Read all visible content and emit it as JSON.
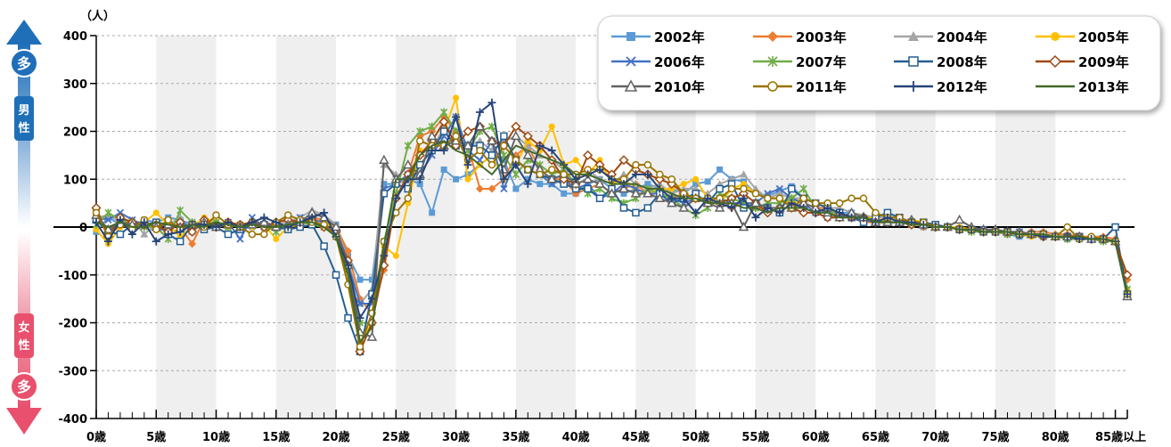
{
  "chart_data": {
    "type": "line",
    "unit_label": "（人）",
    "y_ticks": [
      400,
      300,
      200,
      100,
      0,
      -100,
      -200,
      -300,
      -400
    ],
    "ylim": [
      -400,
      400
    ],
    "x_ticks": [
      {
        "index": 0,
        "label": "0歳"
      },
      {
        "index": 5,
        "label": "5歳"
      },
      {
        "index": 10,
        "label": "10歳"
      },
      {
        "index": 15,
        "label": "15歳"
      },
      {
        "index": 20,
        "label": "20歳"
      },
      {
        "index": 25,
        "label": "25歳"
      },
      {
        "index": 30,
        "label": "30歳"
      },
      {
        "index": 35,
        "label": "35歳"
      },
      {
        "index": 40,
        "label": "40歳"
      },
      {
        "index": 45,
        "label": "45歳"
      },
      {
        "index": 50,
        "label": "50歳"
      },
      {
        "index": 55,
        "label": "55歳"
      },
      {
        "index": 60,
        "label": "60歳"
      },
      {
        "index": 65,
        "label": "65歳"
      },
      {
        "index": 70,
        "label": "70歳"
      },
      {
        "index": 75,
        "label": "75歳"
      },
      {
        "index": 80,
        "label": "80歳"
      },
      {
        "index": 85,
        "label": "85歳以上"
      }
    ],
    "shaded_bands": [
      [
        5,
        10
      ],
      [
        15,
        20
      ],
      [
        25,
        30
      ],
      [
        35,
        40
      ],
      [
        45,
        50
      ],
      [
        55,
        60
      ],
      [
        65,
        70
      ],
      [
        75,
        80
      ]
    ],
    "grid": "horizontal-dashed",
    "legend_position": "top-right",
    "side_labels": {
      "male_badge": "多",
      "male": [
        "男",
        "性"
      ],
      "female": [
        "女",
        "性"
      ],
      "female_badge": "多"
    },
    "series": [
      {
        "name": "2002年",
        "color": "#5b9bd5",
        "marker": "square",
        "values": [
          -10,
          20,
          5,
          0,
          15,
          10,
          20,
          15,
          5,
          10,
          0,
          5,
          5,
          0,
          5,
          0,
          5,
          10,
          20,
          15,
          5,
          -60,
          -110,
          -110,
          90,
          90,
          100,
          90,
          30,
          120,
          100,
          110,
          130,
          150,
          140,
          80,
          100,
          90,
          90,
          70,
          70,
          90,
          100,
          80,
          70,
          80,
          90,
          80,
          80,
          70,
          90,
          95,
          120,
          100,
          95,
          70,
          65,
          75,
          85,
          60,
          50,
          40,
          30,
          30,
          20,
          10,
          20,
          15,
          10,
          0,
          5,
          0,
          -5,
          -5,
          -10,
          -10,
          -15,
          -20,
          -15,
          -20,
          -20,
          -25,
          -20,
          -25,
          -25,
          -30,
          -140
        ]
      },
      {
        "name": "2003年",
        "color": "#ed7d31",
        "marker": "diamond",
        "values": [
          35,
          -20,
          10,
          10,
          5,
          0,
          10,
          0,
          -35,
          15,
          10,
          5,
          0,
          5,
          0,
          10,
          15,
          5,
          20,
          15,
          0,
          -50,
          -150,
          -180,
          -90,
          60,
          110,
          190,
          200,
          230,
          200,
          170,
          80,
          80,
          100,
          150,
          170,
          120,
          100,
          100,
          70,
          80,
          90,
          70,
          80,
          90,
          70,
          70,
          60,
          70,
          60,
          50,
          50,
          40,
          50,
          40,
          40,
          40,
          60,
          50,
          40,
          40,
          20,
          20,
          10,
          10,
          20,
          20,
          10,
          0,
          5,
          0,
          -5,
          -5,
          -10,
          -10,
          -10,
          -15,
          -10,
          -10,
          -15,
          -15,
          -20,
          -20,
          -20,
          -25,
          -110
        ]
      },
      {
        "name": "2004年",
        "color": "#a5a5a5",
        "marker": "triangle",
        "values": [
          20,
          25,
          10,
          15,
          -15,
          5,
          5,
          20,
          -10,
          10,
          5,
          10,
          5,
          5,
          10,
          5,
          10,
          20,
          35,
          25,
          5,
          -70,
          -160,
          -130,
          130,
          110,
          80,
          130,
          160,
          210,
          190,
          170,
          180,
          160,
          180,
          190,
          170,
          150,
          140,
          120,
          110,
          120,
          100,
          90,
          110,
          90,
          80,
          90,
          70,
          80,
          80,
          70,
          90,
          100,
          110,
          80,
          60,
          70,
          60,
          60,
          50,
          40,
          40,
          30,
          25,
          20,
          20,
          15,
          10,
          10,
          0,
          0,
          -5,
          -5,
          -10,
          -10,
          -10,
          -15,
          -15,
          -20,
          -20,
          -20,
          -25,
          -25,
          -25,
          -30,
          -140
        ]
      },
      {
        "name": "2005年",
        "color": "#ffc000",
        "marker": "circle",
        "values": [
          -5,
          -35,
          0,
          10,
          10,
          30,
          5,
          -20,
          0,
          20,
          10,
          0,
          5,
          0,
          5,
          -25,
          0,
          5,
          15,
          10,
          -5,
          -120,
          -240,
          -200,
          -40,
          -60,
          50,
          160,
          160,
          200,
          270,
          100,
          130,
          150,
          100,
          130,
          180,
          160,
          210,
          130,
          140,
          110,
          140,
          90,
          100,
          80,
          70,
          80,
          80,
          90,
          100,
          60,
          50,
          80,
          90,
          70,
          60,
          60,
          50,
          60,
          50,
          40,
          30,
          20,
          20,
          20,
          10,
          10,
          15,
          10,
          0,
          0,
          0,
          -5,
          -10,
          -10,
          -15,
          -15,
          -20,
          -20,
          -20,
          -20,
          -25,
          -20,
          -25,
          -30,
          -130
        ]
      },
      {
        "name": "2006年",
        "color": "#4472c4",
        "marker": "x",
        "values": [
          20,
          15,
          30,
          15,
          5,
          0,
          -10,
          10,
          0,
          5,
          5,
          10,
          -25,
          20,
          0,
          5,
          0,
          20,
          15,
          10,
          -20,
          -80,
          -160,
          -160,
          80,
          90,
          110,
          110,
          150,
          190,
          230,
          160,
          140,
          180,
          80,
          140,
          120,
          110,
          90,
          100,
          80,
          90,
          60,
          70,
          90,
          80,
          70,
          70,
          60,
          50,
          60,
          60,
          60,
          50,
          50,
          50,
          70,
          80,
          60,
          50,
          30,
          20,
          20,
          20,
          15,
          10,
          10,
          10,
          10,
          5,
          0,
          0,
          -5,
          -5,
          -5,
          -10,
          -10,
          -10,
          -15,
          -20,
          -20,
          -20,
          -20,
          -25,
          -25,
          -30,
          -140
        ]
      },
      {
        "name": "2007年",
        "color": "#70ad47",
        "marker": "star",
        "values": [
          5,
          30,
          15,
          10,
          0,
          0,
          -25,
          35,
          10,
          5,
          10,
          0,
          5,
          10,
          5,
          -10,
          5,
          10,
          5,
          0,
          -20,
          -90,
          -200,
          -200,
          -30,
          70,
          170,
          200,
          210,
          240,
          200,
          160,
          200,
          210,
          150,
          110,
          140,
          130,
          110,
          120,
          90,
          70,
          80,
          60,
          50,
          60,
          80,
          70,
          60,
          40,
          25,
          40,
          70,
          60,
          50,
          40,
          50,
          50,
          60,
          80,
          40,
          30,
          30,
          20,
          20,
          15,
          10,
          10,
          5,
          5,
          0,
          0,
          -5,
          -10,
          -10,
          -10,
          -15,
          -15,
          -15,
          -20,
          -20,
          -25,
          -25,
          -25,
          -30,
          -30,
          -130
        ]
      },
      {
        "name": "2008年",
        "color": "#255e91",
        "marker": "square-open",
        "values": [
          15,
          -10,
          -15,
          5,
          5,
          10,
          -15,
          -30,
          5,
          -5,
          0,
          -15,
          -5,
          5,
          5,
          0,
          -5,
          0,
          5,
          -40,
          -100,
          -190,
          -260,
          -140,
          70,
          90,
          80,
          130,
          160,
          200,
          170,
          170,
          170,
          150,
          190,
          140,
          120,
          110,
          100,
          90,
          80,
          80,
          60,
          80,
          40,
          30,
          40,
          70,
          50,
          60,
          70,
          50,
          80,
          90,
          40,
          50,
          40,
          30,
          80,
          60,
          50,
          40,
          30,
          20,
          10,
          20,
          30,
          20,
          10,
          10,
          5,
          0,
          -5,
          -5,
          -10,
          -10,
          -10,
          -15,
          -15,
          -15,
          -20,
          -20,
          -20,
          -25,
          -25,
          0,
          -140
        ]
      },
      {
        "name": "2009年",
        "color": "#9e480e",
        "marker": "diamond-open",
        "values": [
          40,
          -20,
          20,
          10,
          5,
          5,
          -10,
          10,
          -10,
          15,
          0,
          10,
          5,
          10,
          0,
          10,
          15,
          10,
          15,
          0,
          -10,
          -70,
          -260,
          -200,
          -80,
          60,
          110,
          150,
          180,
          220,
          170,
          200,
          210,
          180,
          170,
          210,
          190,
          170,
          140,
          100,
          90,
          150,
          130,
          110,
          140,
          120,
          110,
          100,
          90,
          70,
          60,
          50,
          50,
          60,
          70,
          50,
          30,
          40,
          40,
          30,
          30,
          20,
          20,
          20,
          20,
          10,
          10,
          10,
          5,
          5,
          0,
          0,
          -5,
          -5,
          -10,
          -10,
          -10,
          -15,
          -15,
          -20,
          -20,
          -20,
          -20,
          -25,
          -25,
          -30,
          -100
        ]
      },
      {
        "name": "2010年",
        "color": "#636363",
        "marker": "triangle-open",
        "values": [
          25,
          -5,
          10,
          5,
          10,
          0,
          5,
          0,
          5,
          10,
          0,
          5,
          0,
          5,
          10,
          0,
          5,
          10,
          30,
          20,
          0,
          -80,
          -220,
          -230,
          140,
          100,
          130,
          110,
          190,
          170,
          180,
          170,
          210,
          180,
          120,
          190,
          150,
          120,
          100,
          110,
          90,
          100,
          90,
          70,
          80,
          70,
          70,
          60,
          50,
          40,
          60,
          50,
          40,
          50,
          0,
          50,
          40,
          40,
          40,
          50,
          40,
          30,
          20,
          30,
          20,
          10,
          10,
          10,
          15,
          5,
          0,
          0,
          15,
          0,
          -5,
          -5,
          -10,
          -10,
          -15,
          -15,
          -20,
          -20,
          -20,
          -25,
          -25,
          -30,
          -145
        ]
      },
      {
        "name": "2011年",
        "color": "#997300",
        "marker": "circle-open",
        "values": [
          30,
          -20,
          5,
          -5,
          15,
          -5,
          15,
          -5,
          5,
          0,
          25,
          5,
          0,
          -15,
          -15,
          10,
          25,
          15,
          10,
          5,
          -20,
          -120,
          -250,
          -180,
          -30,
          30,
          60,
          180,
          170,
          170,
          190,
          140,
          160,
          130,
          170,
          140,
          120,
          110,
          120,
          110,
          110,
          120,
          120,
          100,
          100,
          130,
          130,
          110,
          100,
          70,
          60,
          60,
          60,
          80,
          80,
          70,
          60,
          60,
          40,
          60,
          50,
          50,
          50,
          60,
          60,
          30,
          20,
          20,
          10,
          10,
          0,
          0,
          -5,
          -5,
          -10,
          -10,
          -10,
          -15,
          -15,
          -15,
          -20,
          0,
          -25,
          -20,
          -25,
          -30,
          -140
        ]
      },
      {
        "name": "2012年",
        "color": "#264478",
        "marker": "plus",
        "values": [
          10,
          -30,
          15,
          -15,
          10,
          -30,
          -15,
          -10,
          5,
          5,
          0,
          10,
          0,
          10,
          20,
          10,
          0,
          10,
          20,
          30,
          -20,
          -80,
          -190,
          -150,
          -60,
          60,
          100,
          100,
          160,
          160,
          230,
          130,
          240,
          260,
          100,
          130,
          90,
          170,
          160,
          130,
          100,
          110,
          120,
          100,
          90,
          110,
          110,
          80,
          60,
          60,
          30,
          60,
          50,
          40,
          60,
          20,
          40,
          30,
          50,
          40,
          30,
          40,
          30,
          20,
          20,
          10,
          20,
          10,
          10,
          5,
          0,
          0,
          -5,
          -5,
          -10,
          -10,
          -10,
          -15,
          -15,
          -20,
          -20,
          -20,
          -25,
          -25,
          -25,
          -30,
          -140
        ]
      },
      {
        "name": "2013年",
        "color": "#43682b",
        "marker": "none",
        "values": [
          10,
          0,
          10,
          0,
          0,
          10,
          5,
          0,
          5,
          0,
          10,
          5,
          0,
          5,
          0,
          0,
          5,
          10,
          10,
          0,
          -20,
          -100,
          -240,
          -210,
          -40,
          100,
          100,
          150,
          170,
          180,
          160,
          150,
          130,
          110,
          140,
          170,
          160,
          150,
          140,
          130,
          110,
          110,
          100,
          90,
          90,
          90,
          80,
          80,
          70,
          60,
          60,
          50,
          50,
          50,
          40,
          40,
          30,
          40,
          40,
          40,
          30,
          30,
          20,
          20,
          20,
          10,
          10,
          10,
          5,
          5,
          0,
          0,
          -5,
          -5,
          -10,
          -10,
          -10,
          -15,
          -15,
          -15,
          -20,
          -20,
          -20,
          -25,
          -25,
          -30,
          -140
        ]
      }
    ]
  }
}
